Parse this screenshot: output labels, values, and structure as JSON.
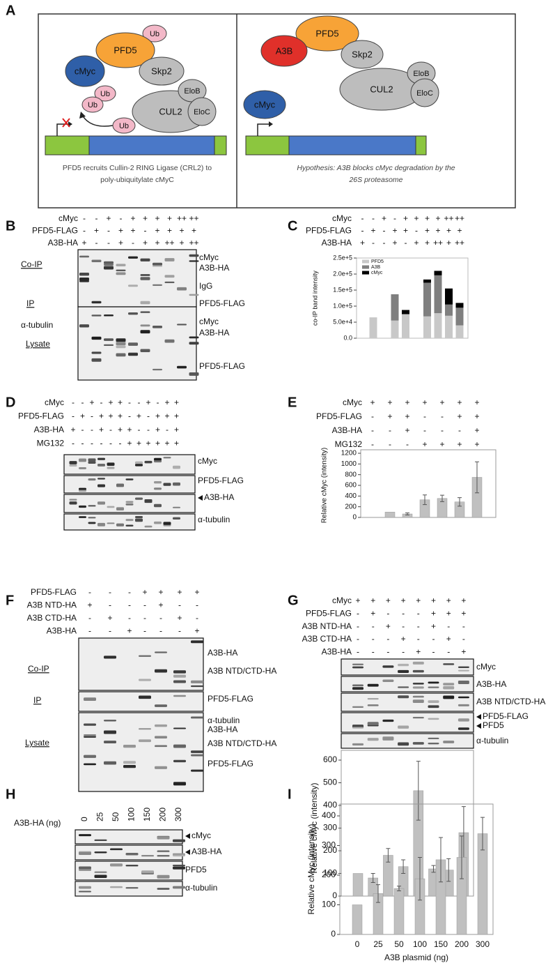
{
  "panel_labels": {
    "a": "A",
    "b": "B",
    "c": "C",
    "d": "D",
    "e": "E",
    "f": "F",
    "g": "G",
    "h": "H",
    "i": "I"
  },
  "panel_a": {
    "left": {
      "nodes": [
        "Ub",
        "PFD5",
        "cMyc",
        "Skp2",
        "Ub",
        "Ub",
        "CUL2",
        "EloB",
        "EloC",
        "Ub"
      ],
      "caption": [
        "PFD5 recruits Cullin-2 RING Ligase (CRL2) to",
        "poly-ubiquitylate cMyC"
      ]
    },
    "right": {
      "nodes": [
        "PFD5",
        "A3B",
        "Skp2",
        "CUL2",
        "EloB",
        "EloC",
        "cMyc"
      ],
      "caption": [
        "Hypothesis: A3B blocks cMyc degradation by the",
        "26S proteasome"
      ]
    }
  },
  "blot_b": {
    "conditions": [
      {
        "label": "cMyc",
        "signs": [
          "-",
          "-",
          "+",
          "-",
          "+",
          "+",
          "+",
          "+",
          "++",
          "++"
        ]
      },
      {
        "label": "PFD5-FLAG",
        "signs": [
          "-",
          "+",
          "-",
          "+",
          "+",
          "-",
          "+",
          "+",
          "+",
          "+"
        ]
      },
      {
        "label": "A3B-HA",
        "signs": [
          "+",
          "-",
          "-",
          "+",
          "-",
          "+",
          "+",
          "++",
          "+",
          "++"
        ]
      }
    ],
    "left_labels": [
      "Co-IP",
      "IP",
      "α-tubulin",
      "Lysate"
    ],
    "right_labels": [
      "cMyc",
      "A3B-HA",
      "IgG",
      "PFD5-FLAG",
      "cMyc",
      "A3B-HA",
      "PFD5-FLAG"
    ]
  },
  "blot_d": {
    "conditions": [
      {
        "label": "cMyc",
        "signs": [
          "-",
          "-",
          "+",
          "-",
          "+",
          "+",
          "-",
          "-",
          "+",
          "-",
          "+",
          "+"
        ]
      },
      {
        "label": "PFD5-FLAG",
        "signs": [
          "-",
          "+",
          "-",
          "+",
          "+",
          "+",
          "-",
          "+",
          "-",
          "+",
          "+",
          "+"
        ]
      },
      {
        "label": "A3B-HA",
        "signs": [
          "+",
          "-",
          "-",
          "+",
          "-",
          "+",
          "+",
          "-",
          "-",
          "+",
          "-",
          "+"
        ]
      },
      {
        "label": "MG132",
        "signs": [
          "-",
          "-",
          "-",
          "-",
          "-",
          "-",
          "+",
          "+",
          "+",
          "+",
          "+",
          "+"
        ]
      }
    ],
    "right_labels": [
      "cMyc",
      "PFD5-FLAG",
      "A3B-HA",
      "α-tubulin"
    ]
  },
  "blot_f": {
    "conditions": [
      {
        "label": "PFD5-FLAG",
        "signs": [
          "-",
          "-",
          "-",
          "+",
          "+",
          "+",
          "+"
        ]
      },
      {
        "label": "A3B NTD-HA",
        "signs": [
          "+",
          "-",
          "-",
          "-",
          "+",
          "-",
          "-"
        ]
      },
      {
        "label": "A3B CTD-HA",
        "signs": [
          "-",
          "+",
          "-",
          "-",
          "-",
          "+",
          "-"
        ]
      },
      {
        "label": "A3B-HA",
        "signs": [
          "-",
          "-",
          "+",
          "-",
          "-",
          "-",
          "+"
        ]
      }
    ],
    "left_labels": [
      "Co-IP",
      "IP",
      "Lysate"
    ],
    "right_labels": [
      "A3B-HA",
      "A3B NTD/CTD-HA",
      "PFD5-FLAG",
      "α-tubulin",
      "A3B-HA",
      "A3B NTD/CTD-HA",
      "PFD5-FLAG"
    ]
  },
  "blot_g": {
    "conditions": [
      {
        "label": "cMyc",
        "signs": [
          "+",
          "+",
          "+",
          "+",
          "+",
          "+",
          "+",
          "+"
        ]
      },
      {
        "label": "PFD5-FLAG",
        "signs": [
          "-",
          "+",
          "-",
          "-",
          "-",
          "+",
          "+",
          "+"
        ]
      },
      {
        "label": "A3B NTD-HA",
        "signs": [
          "-",
          "-",
          "+",
          "-",
          "-",
          "+",
          "-",
          "-"
        ]
      },
      {
        "label": "A3B CTD-HA",
        "signs": [
          "-",
          "-",
          "-",
          "+",
          "-",
          "-",
          "+",
          "-"
        ]
      },
      {
        "label": "A3B-HA",
        "signs": [
          "-",
          "-",
          "-",
          "-",
          "+",
          "-",
          "-",
          "+"
        ]
      }
    ],
    "right_labels": [
      "cMyc",
      "A3B-HA",
      "A3B NTD/CTD-HA",
      "PFD5-FLAG",
      "PFD5",
      "α-tubulin"
    ]
  },
  "blot_h": {
    "dose_label": "A3B-HA (ng)",
    "doses": [
      0,
      25,
      50,
      100,
      150,
      200,
      300
    ],
    "right_labels": [
      "cMyc",
      "A3B-HA",
      "PFD5",
      "α-tubulin"
    ]
  },
  "chart_data": [
    {
      "type": "stacked_bar",
      "y_label": "co-IP band intensity",
      "conditions": [
        {
          "label": "cMyc",
          "signs": [
            "-",
            "-",
            "+",
            "-",
            "+",
            "+",
            "+",
            "+",
            "++",
            "++"
          ]
        },
        {
          "label": "PFD5-FLAG",
          "signs": [
            "-",
            "+",
            "-",
            "+",
            "+",
            "-",
            "+",
            "+",
            "+",
            "+"
          ]
        },
        {
          "label": "A3B-HA",
          "signs": [
            "+",
            "-",
            "-",
            "+",
            "-",
            "+",
            "+",
            "++",
            "+",
            "++"
          ]
        }
      ],
      "series": [
        {
          "name": "PFD5",
          "color": "#c8c8c8",
          "values": [
            0,
            65000,
            0,
            55000,
            75000,
            0,
            68000,
            78000,
            70000,
            40000
          ]
        },
        {
          "name": "A3B",
          "color": "#7f7f7f",
          "values": [
            0,
            0,
            0,
            82000,
            0,
            0,
            105000,
            118000,
            35000,
            55000
          ]
        },
        {
          "name": "cMyc",
          "color": "#000000",
          "values": [
            0,
            0,
            0,
            0,
            13000,
            0,
            10000,
            14000,
            50000,
            15000
          ]
        }
      ],
      "ylim": [
        0,
        250000
      ],
      "yticks": [
        {
          "value": 0,
          "label": "0.0"
        },
        {
          "value": 50000,
          "label": "5.0e+4"
        },
        {
          "value": 100000,
          "label": "1.0e+5"
        },
        {
          "value": 150000,
          "label": "1.5e+5"
        },
        {
          "value": 200000,
          "label": "2.0e+5"
        },
        {
          "value": 250000,
          "label": "2.5e+5"
        }
      ],
      "legend": "upper left"
    },
    {
      "type": "bar",
      "y_label": "Relative cMyc (intensity)",
      "conditions": [
        {
          "label": "cMyc",
          "signs": [
            "+",
            "+",
            "+",
            "+",
            "+",
            "+",
            "+"
          ]
        },
        {
          "label": "PFD5-FLAG",
          "signs": [
            "-",
            "+",
            "+",
            "-",
            "-",
            "+",
            "+"
          ]
        },
        {
          "label": "A3B-HA",
          "signs": [
            "-",
            "-",
            "+",
            "-",
            "-",
            "-",
            "+"
          ]
        },
        {
          "label": "MG132",
          "signs": [
            "-",
            "-",
            "-",
            "+",
            "+",
            "+",
            "+"
          ]
        }
      ],
      "values": [
        null,
        100,
        65,
        330,
        355,
        290,
        750
      ],
      "errors": [
        null,
        0,
        20,
        90,
        60,
        80,
        290
      ],
      "color": "#c0c0c0",
      "ylim": [
        0,
        1200
      ],
      "yticks": [
        0,
        200,
        400,
        600,
        800,
        1000,
        1200
      ]
    },
    {
      "type": "bar",
      "y_label": "Relative cMyc (intensity)",
      "values": [
        100,
        80,
        180,
        130,
        465,
        120,
        115,
        280
      ],
      "errors": [
        0,
        20,
        30,
        30,
        130,
        15,
        50,
        115
      ],
      "color": "#c0c0c0",
      "ylim": [
        0,
        600
      ],
      "yticks": [
        0,
        100,
        200,
        300,
        400,
        500,
        600
      ]
    },
    {
      "type": "bar",
      "y_label": "Relative cMyc (intensity)",
      "x_label": "A3B plasmid (ng)",
      "categories": [
        0,
        25,
        50,
        100,
        150,
        200,
        300
      ],
      "values": [
        100,
        138,
        155,
        188,
        252,
        260,
        340
      ],
      "errors": [
        0,
        30,
        8,
        72,
        75,
        72,
        55
      ],
      "color": "#c0c0c0",
      "ylim": [
        0,
        440
      ],
      "yticks": [
        0,
        100,
        200,
        300,
        400
      ]
    }
  ]
}
